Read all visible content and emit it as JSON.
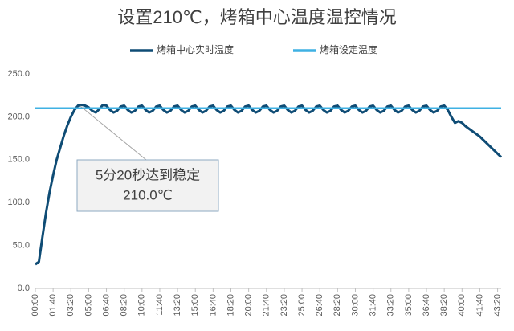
{
  "chart_data": {
    "type": "line",
    "title": "设置210℃，烤箱中心温度温控情况",
    "x": [
      0,
      20,
      40,
      60,
      80,
      100,
      120,
      140,
      160,
      180,
      200,
      220,
      240,
      260,
      280,
      300,
      320,
      340,
      360,
      380,
      400,
      420,
      440,
      460,
      480,
      500,
      520,
      540,
      560,
      580,
      600,
      620,
      640,
      660,
      680,
      700,
      720,
      740,
      760,
      780,
      800,
      820,
      840,
      860,
      880,
      900,
      920,
      940,
      960,
      980,
      1000,
      1020,
      1040,
      1060,
      1080,
      1100,
      1120,
      1140,
      1160,
      1180,
      1200,
      1220,
      1240,
      1260,
      1280,
      1300,
      1320,
      1340,
      1360,
      1380,
      1400,
      1420,
      1440,
      1460,
      1480,
      1500,
      1520,
      1540,
      1560,
      1580,
      1600,
      1620,
      1640,
      1660,
      1680,
      1700,
      1720,
      1740,
      1760,
      1780,
      1800,
      1820,
      1840,
      1860,
      1880,
      1900,
      1920,
      1940,
      1960,
      1980,
      2000,
      2020,
      2040,
      2060,
      2080,
      2100,
      2120,
      2140,
      2160,
      2180,
      2200,
      2220,
      2240,
      2260,
      2280,
      2300,
      2320,
      2340,
      2360,
      2380,
      2400,
      2420,
      2440,
      2460,
      2480,
      2500,
      2520,
      2540,
      2560,
      2580,
      2600,
      2620
    ],
    "series": [
      {
        "name": "烤箱中心实时温度",
        "color": "#0f4c75",
        "values": [
          28,
          31,
          60,
          88,
          112,
          132,
          150,
          164,
          178,
          190,
          200,
          208,
          213,
          214,
          213,
          211,
          207,
          205,
          209,
          214,
          213,
          208,
          205,
          207,
          212,
          213,
          208,
          205,
          207,
          212,
          213,
          208,
          205,
          207,
          212,
          213,
          208,
          205,
          207,
          212,
          213,
          208,
          205,
          207,
          212,
          213,
          208,
          205,
          207,
          212,
          213,
          208,
          205,
          207,
          212,
          213,
          208,
          205,
          207,
          212,
          213,
          208,
          205,
          207,
          212,
          213,
          208,
          205,
          207,
          212,
          213,
          208,
          205,
          207,
          212,
          213,
          208,
          205,
          207,
          212,
          213,
          208,
          205,
          207,
          212,
          213,
          208,
          205,
          207,
          212,
          213,
          208,
          205,
          207,
          212,
          213,
          208,
          205,
          207,
          212,
          213,
          208,
          205,
          207,
          212,
          213,
          208,
          205,
          207,
          212,
          213,
          208,
          205,
          207,
          212,
          213,
          208,
          200,
          193,
          195,
          193,
          189,
          186,
          183,
          180,
          177,
          173,
          169,
          165,
          161,
          157,
          153
        ]
      },
      {
        "name": "烤箱设定温度",
        "color": "#3fb1e3",
        "values": [
          210,
          210,
          210,
          210,
          210,
          210,
          210,
          210,
          210,
          210,
          210,
          210,
          210,
          210,
          210,
          210,
          210,
          210,
          210,
          210,
          210,
          210,
          210,
          210,
          210,
          210,
          210,
          210,
          210,
          210,
          210,
          210,
          210,
          210,
          210,
          210,
          210,
          210,
          210,
          210,
          210,
          210,
          210,
          210,
          210,
          210,
          210,
          210,
          210,
          210,
          210,
          210,
          210,
          210,
          210,
          210,
          210,
          210,
          210,
          210,
          210,
          210,
          210,
          210,
          210,
          210,
          210,
          210,
          210,
          210,
          210,
          210,
          210,
          210,
          210,
          210,
          210,
          210,
          210,
          210,
          210,
          210,
          210,
          210,
          210,
          210,
          210,
          210,
          210,
          210,
          210,
          210,
          210,
          210,
          210,
          210,
          210,
          210,
          210,
          210,
          210,
          210,
          210,
          210,
          210,
          210,
          210,
          210,
          210,
          210,
          210,
          210,
          210,
          210,
          210,
          210,
          210,
          210,
          210,
          210,
          210,
          210,
          210,
          210,
          210,
          210,
          210,
          210,
          210,
          210,
          210,
          210
        ]
      }
    ],
    "xlim": [
      0,
      2620
    ],
    "xticks": [
      {
        "value": 0,
        "label": "00:00"
      },
      {
        "value": 100,
        "label": "01:40"
      },
      {
        "value": 200,
        "label": "03:20"
      },
      {
        "value": 300,
        "label": "05:00"
      },
      {
        "value": 400,
        "label": "06:40"
      },
      {
        "value": 500,
        "label": "08:20"
      },
      {
        "value": 600,
        "label": "10:00"
      },
      {
        "value": 700,
        "label": "11:40"
      },
      {
        "value": 800,
        "label": "13:20"
      },
      {
        "value": 900,
        "label": "15:00"
      },
      {
        "value": 1000,
        "label": "16:40"
      },
      {
        "value": 1100,
        "label": "18:20"
      },
      {
        "value": 1200,
        "label": "20:00"
      },
      {
        "value": 1300,
        "label": "21:40"
      },
      {
        "value": 1400,
        "label": "23:20"
      },
      {
        "value": 1500,
        "label": "25:00"
      },
      {
        "value": 1600,
        "label": "26:40"
      },
      {
        "value": 1700,
        "label": "28:20"
      },
      {
        "value": 1800,
        "label": "30:00"
      },
      {
        "value": 1900,
        "label": "31:40"
      },
      {
        "value": 2000,
        "label": "33:20"
      },
      {
        "value": 2100,
        "label": "35:00"
      },
      {
        "value": 2200,
        "label": "36:40"
      },
      {
        "value": 2300,
        "label": "38:20"
      },
      {
        "value": 2400,
        "label": "40:00"
      },
      {
        "value": 2500,
        "label": "41:40"
      },
      {
        "value": 2600,
        "label": "43:20"
      }
    ],
    "ylim": [
      0,
      250
    ],
    "yticks": [
      {
        "value": 0,
        "label": "0.0"
      },
      {
        "value": 50,
        "label": "50.0"
      },
      {
        "value": 100,
        "label": "100.0"
      },
      {
        "value": 150,
        "label": "150.0"
      },
      {
        "value": 200,
        "label": "200.0"
      },
      {
        "value": 250,
        "label": "250.0"
      }
    ],
    "grid": false,
    "annotation": {
      "lines": [
        "5分20秒达到稳定",
        "210.0℃"
      ]
    }
  }
}
